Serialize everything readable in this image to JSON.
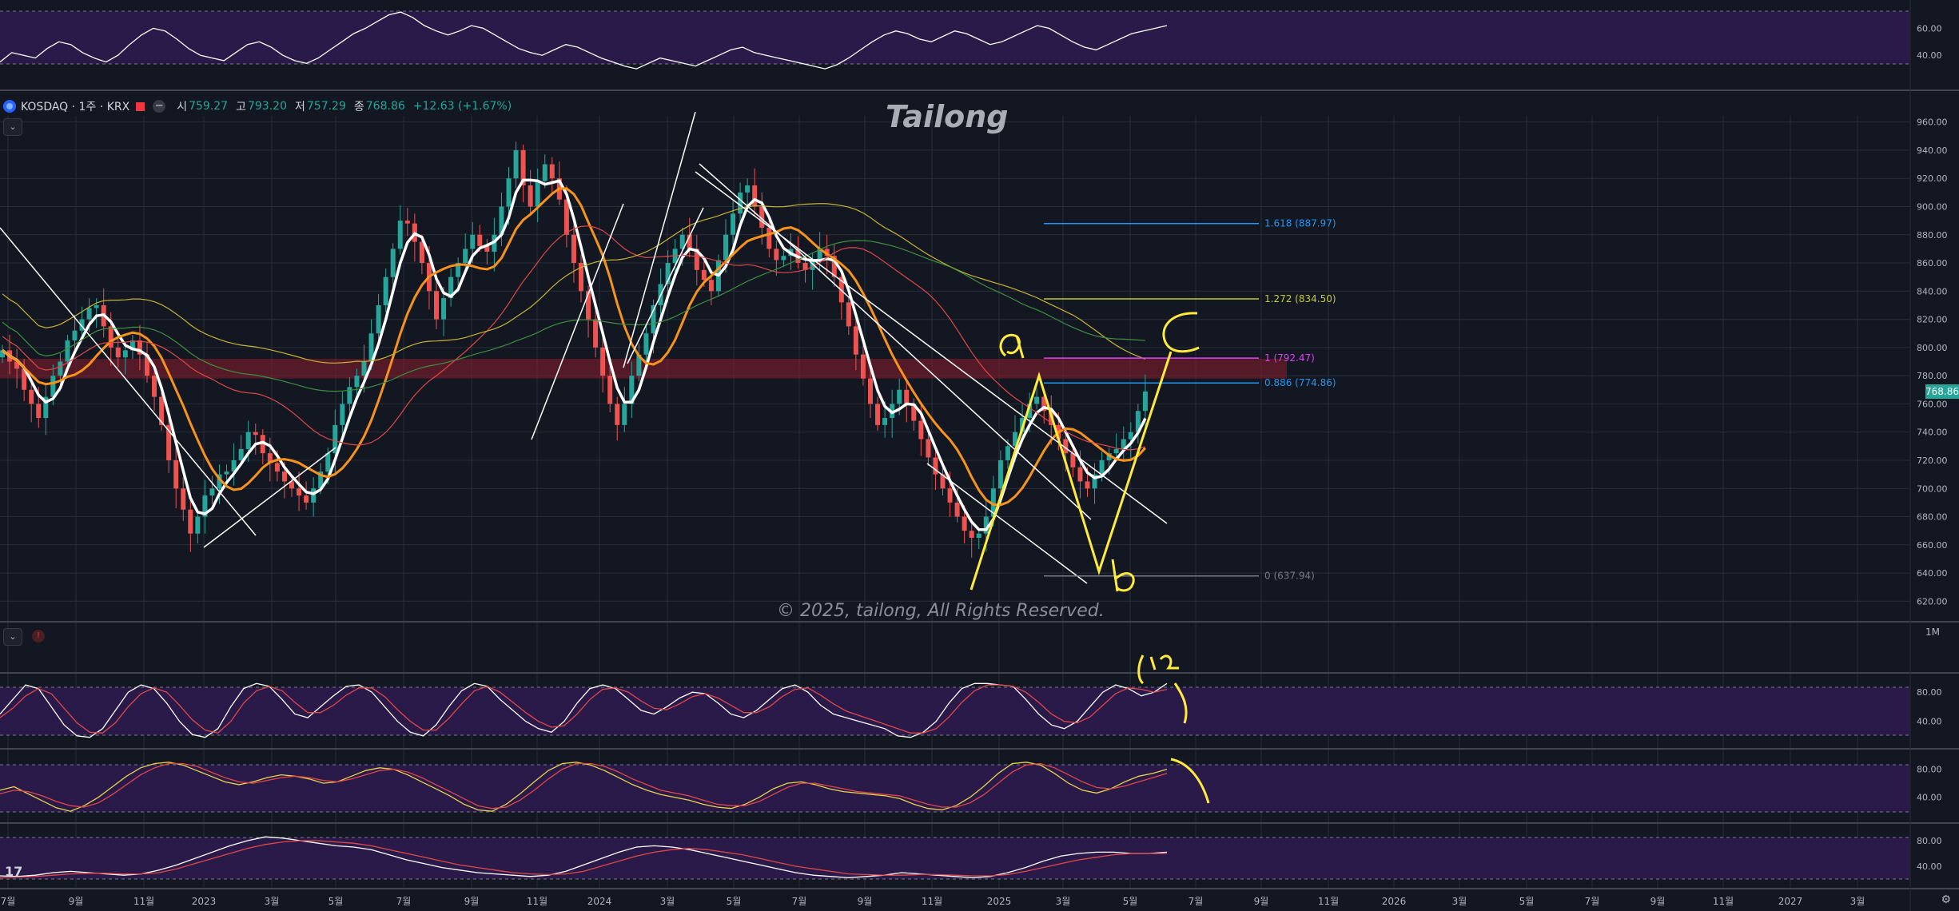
{
  "symbol": {
    "name": "KOSDAQ · 1주 · KRX",
    "open_label": "시",
    "open": "759.27",
    "high_label": "고",
    "high": "793.20",
    "low_label": "저",
    "low": "757.29",
    "close_label": "종",
    "close": "768.86",
    "change": "+12.63 (+1.67%)"
  },
  "watermark": "Tailong",
  "copyright": "© 2025, tailong, All Rights Reserved.",
  "current_price": "768.86",
  "interval_label": "1M",
  "icons": {
    "logo": "tradingview-logo",
    "eye": "eye-icon",
    "collapse": "chevron-down-icon",
    "alert": "alert-icon",
    "settings": "settings-icon"
  },
  "tv_logo_text": "17",
  "colors": {
    "background": "#131722",
    "grid": "#2a2e39",
    "up": "#26a69a",
    "down": "#ef5350",
    "ma_fast": "#ffffff",
    "ma_mid": "#f7931a",
    "ma_long_red": "#e04848",
    "ma_long_yellow": "#c8b432",
    "ma_long_green": "#3f8f3f",
    "indicator_band": "#2a1a4a",
    "annotation": "#ffeb3b"
  },
  "chart_data": [
    {
      "type": "candlestick",
      "title": "KOSDAQ",
      "ylim": [
        610,
        970
      ],
      "y_ticks": [
        620,
        640,
        660,
        680,
        700,
        720,
        740,
        760,
        780,
        800,
        820,
        840,
        860,
        880,
        900,
        920,
        940,
        960
      ],
      "y_tick_labels": [
        "620.00",
        "640.00",
        "660.00",
        "680.00",
        "700.00",
        "720.00",
        "740.00",
        "760.00",
        "780.00",
        "800.00",
        "820.00",
        "840.00",
        "860.00",
        "880.00",
        "900.00",
        "920.00",
        "940.00",
        "960.00"
      ],
      "x_tick_labels": [
        "7월",
        "9월",
        "11월",
        "2023",
        "3월",
        "5월",
        "7월",
        "9월",
        "11월",
        "2024",
        "3월",
        "5월",
        "7월",
        "9월",
        "11월",
        "2025",
        "3월",
        "5월",
        "7월",
        "9월",
        "11월",
        "2026",
        "3월",
        "5월",
        "7월",
        "9월",
        "11월",
        "2027",
        "3월"
      ],
      "closes": [
        798,
        790,
        785,
        770,
        760,
        750,
        765,
        780,
        790,
        805,
        812,
        820,
        828,
        830,
        815,
        800,
        793,
        798,
        805,
        795,
        780,
        765,
        745,
        720,
        700,
        685,
        668,
        680,
        695,
        700,
        710,
        712,
        720,
        728,
        740,
        738,
        725,
        718,
        712,
        705,
        700,
        695,
        690,
        700,
        712,
        725,
        745,
        760,
        772,
        780,
        790,
        810,
        830,
        850,
        870,
        890,
        888,
        875,
        860,
        840,
        820,
        835,
        850,
        860,
        870,
        880,
        872,
        868,
        880,
        900,
        920,
        940,
        915,
        900,
        918,
        930,
        920,
        905,
        880,
        860,
        840,
        820,
        800,
        780,
        760,
        745,
        760,
        780,
        795,
        810,
        830,
        845,
        860,
        870,
        880,
        870,
        855,
        848,
        840,
        862,
        880,
        895,
        910,
        915,
        900,
        885,
        870,
        862,
        865,
        870,
        860,
        855,
        862,
        870,
        865,
        850,
        832,
        815,
        795,
        778,
        760,
        745,
        750,
        760,
        770,
        760,
        748,
        735,
        722,
        710,
        700,
        690,
        680,
        670,
        665,
        668,
        680,
        700,
        720,
        730,
        740,
        750,
        760,
        765,
        755,
        745,
        735,
        725,
        715,
        705,
        700,
        710,
        720,
        725,
        728,
        735,
        740,
        755,
        768.86
      ],
      "moving_averages": [
        {
          "name": "MA fast",
          "color": "#ffffff"
        },
        {
          "name": "MA mid",
          "color": "#f7931a"
        },
        {
          "name": "MA long",
          "color": "#e04848"
        },
        {
          "name": "MA long 2",
          "color": "#c8b432"
        },
        {
          "name": "MA long 3",
          "color": "#3f8f3f"
        }
      ],
      "fibonacci": [
        {
          "label": "1.618 (887.97)",
          "value": 887.97,
          "color": "#2196f3"
        },
        {
          "label": "1.272 (834.50)",
          "value": 834.5,
          "color": "#c0ca33"
        },
        {
          "label": "1 (792.47)",
          "value": 792.47,
          "color": "#e040fb"
        },
        {
          "label": "0.886 (774.86)",
          "value": 774.86,
          "color": "#2196f3"
        },
        {
          "label": "0 (637.94)",
          "value": 637.94,
          "color": "#787b86"
        }
      ],
      "resistance_zone": [
        778,
        792
      ],
      "annotations": [
        "a",
        "b",
        "c"
      ]
    },
    {
      "type": "line",
      "title": "",
      "ylim": [
        20,
        75
      ],
      "y_tick_labels": [
        "60.00",
        "40.00"
      ],
      "band": [
        30,
        70
      ],
      "series": [
        {
          "values": [
            35,
            42,
            40,
            38,
            45,
            50,
            48,
            42,
            38,
            35,
            40,
            48,
            55,
            60,
            58,
            52,
            45,
            40,
            38,
            36,
            42,
            48,
            50,
            46,
            40,
            36,
            34,
            38,
            44,
            50,
            56,
            60,
            65,
            70,
            72,
            68,
            62,
            58,
            55,
            58,
            62,
            60,
            55,
            50,
            45,
            42,
            40,
            44,
            48,
            46,
            42,
            38,
            35,
            32,
            30,
            34,
            38,
            36,
            34,
            32,
            36,
            40,
            44,
            46,
            42,
            40,
            38,
            36,
            34,
            32,
            30,
            33,
            38,
            44,
            50,
            55,
            58,
            56,
            52,
            50,
            54,
            58,
            56,
            52,
            48,
            50,
            54,
            58,
            62,
            60,
            55,
            50,
            46,
            44,
            48,
            52,
            56,
            58,
            60,
            62
          ]
        }
      ]
    },
    {
      "type": "line",
      "title": "",
      "ylim": [
        10,
        100
      ],
      "y_tick_labels": [
        "80.00",
        "40.00"
      ],
      "band": [
        20,
        80
      ],
      "series": [
        {
          "color": "#ffffff",
          "values": [
            50,
            70,
            90,
            85,
            60,
            35,
            20,
            18,
            30,
            55,
            80,
            90,
            85,
            65,
            40,
            22,
            18,
            30,
            60,
            85,
            92,
            88,
            70,
            50,
            45,
            60,
            75,
            88,
            90,
            80,
            60,
            40,
            25,
            20,
            35,
            60,
            82,
            92,
            88,
            70,
            55,
            40,
            30,
            25,
            40,
            65,
            85,
            90,
            85,
            70,
            55,
            50,
            60,
            72,
            80,
            78,
            65,
            50,
            45,
            55,
            70,
            85,
            90,
            80,
            62,
            50,
            45,
            40,
            35,
            30,
            20,
            18,
            25,
            40,
            65,
            85,
            92,
            92,
            90,
            88,
            70,
            50,
            35,
            30,
            40,
            60,
            80,
            90,
            85,
            75,
            80,
            92
          ]
        },
        {
          "color": "#e04848",
          "values": [
            45,
            58,
            75,
            85,
            78,
            58,
            38,
            25,
            24,
            38,
            60,
            78,
            86,
            80,
            62,
            42,
            28,
            24,
            40,
            65,
            82,
            88,
            82,
            66,
            52,
            52,
            62,
            76,
            86,
            86,
            74,
            56,
            40,
            28,
            28,
            44,
            64,
            82,
            88,
            80,
            66,
            52,
            40,
            32,
            34,
            50,
            70,
            84,
            86,
            80,
            68,
            58,
            56,
            64,
            74,
            78,
            72,
            62,
            52,
            52,
            60,
            74,
            84,
            86,
            76,
            64,
            54,
            48,
            42,
            36,
            30,
            24,
            24,
            30,
            46,
            66,
            82,
            90,
            90,
            88,
            80,
            66,
            50,
            40,
            38,
            46,
            62,
            78,
            86,
            84,
            80,
            84
          ]
        }
      ]
    },
    {
      "type": "line",
      "title": "",
      "ylim": [
        10,
        100
      ],
      "y_tick_labels": [
        "80.00",
        "40.00"
      ],
      "band": [
        20,
        80
      ],
      "series": [
        {
          "color": "#e8d44d",
          "values": [
            50,
            55,
            45,
            35,
            25,
            20,
            28,
            40,
            55,
            70,
            82,
            88,
            90,
            86,
            78,
            70,
            62,
            58,
            62,
            68,
            72,
            70,
            66,
            60,
            62,
            70,
            78,
            82,
            80,
            72,
            62,
            52,
            42,
            30,
            22,
            20,
            30,
            45,
            62,
            78,
            88,
            90,
            86,
            78,
            68,
            58,
            50,
            44,
            40,
            36,
            30,
            26,
            24,
            30,
            40,
            52,
            60,
            62,
            58,
            52,
            48,
            46,
            44,
            42,
            38,
            30,
            24,
            22,
            28,
            40,
            56,
            74,
            88,
            90,
            86,
            74,
            60,
            50,
            46,
            52,
            62,
            70,
            74,
            80
          ]
        },
        {
          "color": "#e04848",
          "values": [
            45,
            50,
            48,
            42,
            34,
            28,
            26,
            32,
            44,
            58,
            72,
            82,
            88,
            88,
            84,
            76,
            68,
            62,
            60,
            64,
            68,
            70,
            68,
            64,
            62,
            66,
            72,
            78,
            80,
            76,
            68,
            58,
            48,
            38,
            28,
            24,
            26,
            36,
            50,
            66,
            80,
            88,
            88,
            84,
            76,
            66,
            58,
            50,
            46,
            42,
            36,
            30,
            28,
            28,
            34,
            44,
            54,
            60,
            60,
            56,
            52,
            48,
            46,
            44,
            42,
            36,
            30,
            26,
            26,
            32,
            44,
            60,
            76,
            86,
            88,
            82,
            72,
            62,
            54,
            52,
            56,
            62,
            68,
            74
          ]
        }
      ]
    },
    {
      "type": "line",
      "title": "",
      "ylim": [
        10,
        100
      ],
      "y_tick_labels": [
        "80.00",
        "40.00"
      ],
      "band": [
        20,
        80
      ],
      "series": [
        {
          "color": "#ffffff",
          "values": [
            25,
            24,
            26,
            30,
            32,
            30,
            28,
            26,
            28,
            34,
            42,
            52,
            62,
            72,
            80,
            86,
            84,
            80,
            76,
            72,
            70,
            66,
            58,
            50,
            44,
            38,
            34,
            30,
            28,
            26,
            24,
            26,
            32,
            42,
            52,
            62,
            70,
            72,
            70,
            66,
            60,
            54,
            48,
            42,
            36,
            30,
            26,
            24,
            22,
            24,
            26,
            30,
            28,
            26,
            24,
            22,
            24,
            30,
            38,
            48,
            56,
            60,
            62,
            62,
            60,
            60,
            62
          ]
        },
        {
          "color": "#e04848",
          "values": [
            22,
            23,
            24,
            26,
            28,
            29,
            29,
            28,
            28,
            30,
            36,
            44,
            52,
            60,
            68,
            74,
            78,
            80,
            80,
            78,
            76,
            72,
            66,
            60,
            54,
            48,
            42,
            38,
            34,
            30,
            28,
            27,
            28,
            32,
            40,
            48,
            56,
            62,
            66,
            68,
            66,
            62,
            58,
            52,
            46,
            40,
            36,
            32,
            28,
            27,
            26,
            26,
            27,
            27,
            26,
            25,
            25,
            27,
            32,
            38,
            44,
            50,
            54,
            58,
            60,
            60,
            60
          ]
        }
      ]
    }
  ]
}
